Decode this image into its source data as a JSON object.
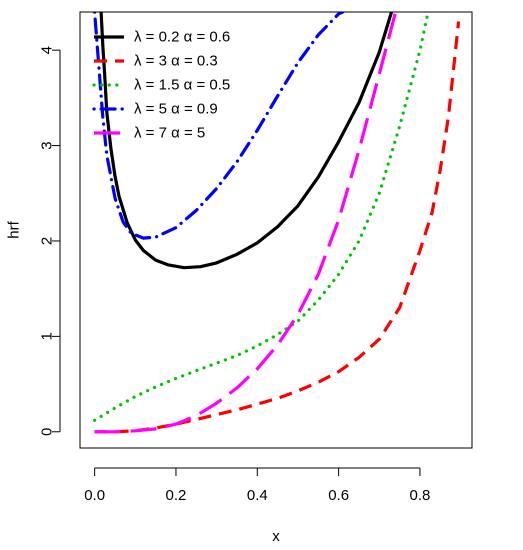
{
  "chart_data": {
    "type": "line",
    "title": "",
    "xlabel": "x",
    "ylabel": "hrf",
    "xlim": [
      -0.036,
      0.928
    ],
    "ylim": [
      -0.17,
      4.4
    ],
    "xticks": [
      0.0,
      0.2,
      0.4,
      0.6,
      0.8
    ],
    "xtick_labels": [
      "0.0",
      "0.2",
      "0.4",
      "0.6",
      "0.8"
    ],
    "yticks": [
      0,
      1,
      2,
      3,
      4
    ],
    "ytick_labels": [
      "0",
      "1",
      "2",
      "3",
      "4"
    ],
    "grid": false,
    "legend_position": "top-left",
    "series": [
      {
        "name": "λ = 0.2  α = 0.6",
        "color": "#000000",
        "style": "solid",
        "x": [
          0.016,
          0.02,
          0.025,
          0.03,
          0.04,
          0.05,
          0.06,
          0.08,
          0.1,
          0.12,
          0.15,
          0.18,
          0.22,
          0.26,
          0.3,
          0.35,
          0.4,
          0.45,
          0.5,
          0.55,
          0.6,
          0.65,
          0.7,
          0.73
        ],
        "y": [
          4.4,
          4.05,
          3.72,
          3.35,
          2.97,
          2.68,
          2.47,
          2.19,
          2.01,
          1.9,
          1.8,
          1.75,
          1.72,
          1.73,
          1.77,
          1.86,
          1.98,
          2.15,
          2.37,
          2.67,
          3.04,
          3.45,
          3.98,
          4.4
        ]
      },
      {
        "name": "λ = 3  α = 0.3",
        "color": "#ff0000",
        "style": "dashed",
        "x": [
          0.0,
          0.05,
          0.1,
          0.15,
          0.2,
          0.25,
          0.3,
          0.35,
          0.4,
          0.45,
          0.5,
          0.55,
          0.6,
          0.65,
          0.7,
          0.75,
          0.8,
          0.83,
          0.85,
          0.87,
          0.88,
          0.895
        ],
        "y": [
          0.0,
          0.0,
          0.01,
          0.04,
          0.08,
          0.13,
          0.18,
          0.23,
          0.29,
          0.35,
          0.43,
          0.52,
          0.63,
          0.78,
          0.97,
          1.3,
          1.9,
          2.3,
          2.75,
          3.3,
          3.7,
          4.3
        ]
      },
      {
        "name": "λ = 1.5  α = 0.5",
        "color": "#00c400",
        "style": "dotted",
        "x": [
          0.0,
          0.05,
          0.1,
          0.15,
          0.2,
          0.25,
          0.3,
          0.35,
          0.4,
          0.45,
          0.5,
          0.55,
          0.6,
          0.65,
          0.7,
          0.75,
          0.8,
          0.82
        ],
        "y": [
          0.12,
          0.25,
          0.37,
          0.47,
          0.56,
          0.64,
          0.72,
          0.8,
          0.9,
          1.02,
          1.16,
          1.38,
          1.65,
          2.0,
          2.5,
          3.2,
          4.0,
          4.4
        ]
      },
      {
        "name": "λ = 5  α = 0.9",
        "color": "#0000ff",
        "style": "dotdash",
        "x": [
          0.0,
          0.01,
          0.02,
          0.03,
          0.05,
          0.07,
          0.09,
          0.12,
          0.15,
          0.2,
          0.25,
          0.3,
          0.35,
          0.4,
          0.45,
          0.5,
          0.55,
          0.6,
          0.61
        ],
        "y": [
          4.4,
          3.85,
          3.3,
          2.9,
          2.45,
          2.2,
          2.08,
          2.03,
          2.04,
          2.14,
          2.32,
          2.55,
          2.83,
          3.16,
          3.52,
          3.87,
          4.16,
          4.38,
          4.4
        ]
      },
      {
        "name": "λ = 7  α = 5",
        "color": "#ff00ff",
        "style": "longdash",
        "x": [
          0.0,
          0.05,
          0.1,
          0.15,
          0.2,
          0.25,
          0.3,
          0.35,
          0.4,
          0.45,
          0.5,
          0.55,
          0.6,
          0.65,
          0.7,
          0.74
        ],
        "y": [
          0.0,
          0.0,
          0.01,
          0.03,
          0.08,
          0.17,
          0.3,
          0.46,
          0.66,
          0.91,
          1.23,
          1.65,
          2.22,
          2.95,
          3.75,
          4.4
        ]
      }
    ]
  }
}
